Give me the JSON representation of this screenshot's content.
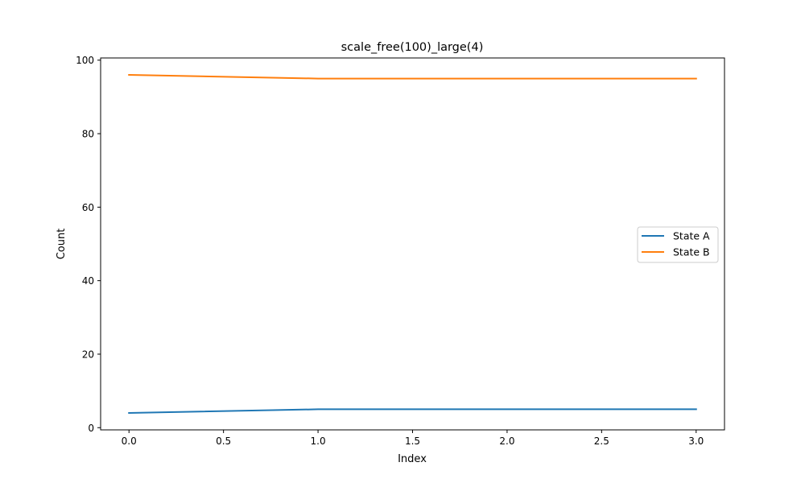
{
  "chart_data": {
    "type": "line",
    "title": "scale_free(100)_large(4)",
    "xlabel": "Index",
    "ylabel": "Count",
    "xlim": [
      -0.15,
      3.15
    ],
    "ylim": [
      -0.6,
      100.6
    ],
    "x_ticks": [
      0.0,
      0.5,
      1.0,
      1.5,
      2.0,
      2.5,
      3.0
    ],
    "x_tick_labels": [
      "0.0",
      "0.5",
      "1.0",
      "1.5",
      "2.0",
      "2.5",
      "3.0"
    ],
    "y_ticks": [
      0,
      20,
      40,
      60,
      80,
      100
    ],
    "y_tick_labels": [
      "0",
      "20",
      "40",
      "60",
      "80",
      "100"
    ],
    "x": [
      0,
      1,
      2,
      3
    ],
    "series": [
      {
        "name": "State A",
        "color": "#1f77b4",
        "values": [
          4,
          5,
          5,
          5
        ]
      },
      {
        "name": "State B",
        "color": "#ff7f0e",
        "values": [
          96,
          95,
          95,
          95
        ]
      }
    ],
    "grid": false,
    "legend_position": "center-right"
  }
}
